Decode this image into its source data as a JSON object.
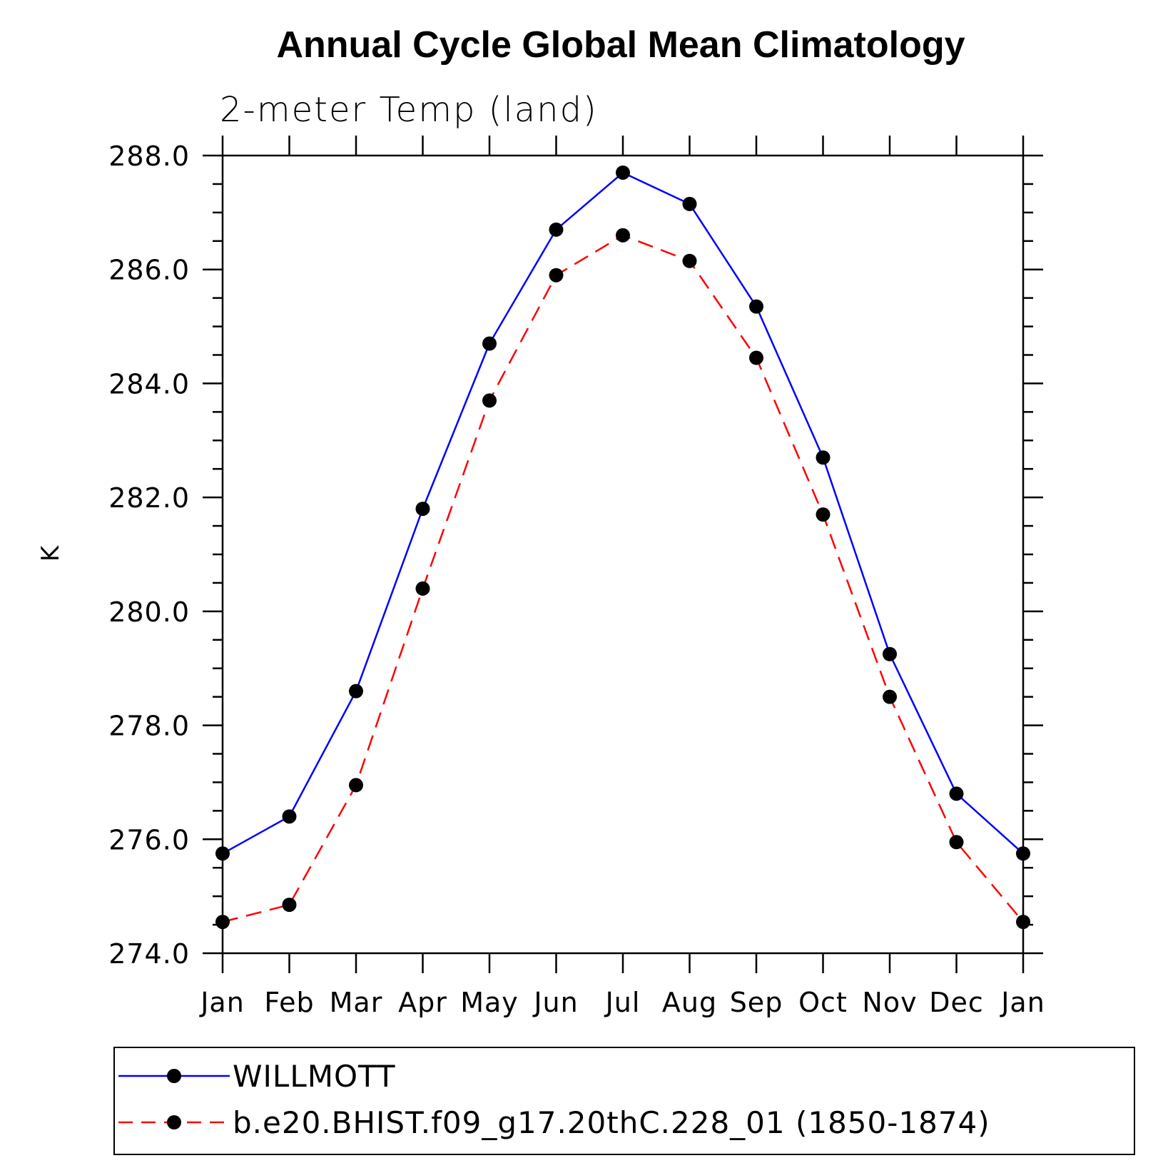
{
  "chart_data": {
    "type": "line",
    "title": "Annual Cycle Global Mean Climatology",
    "subtitle": "2-meter Temp (land)",
    "xlabel": "",
    "ylabel": "K",
    "categories": [
      "Jan",
      "Feb",
      "Mar",
      "Apr",
      "May",
      "Jun",
      "Jul",
      "Aug",
      "Sep",
      "Oct",
      "Nov",
      "Dec",
      "Jan"
    ],
    "ylim": [
      274.0,
      288.0
    ],
    "yticks": [
      "274.0",
      "276.0",
      "278.0",
      "280.0",
      "282.0",
      "284.0",
      "286.0",
      "288.0"
    ],
    "grid": false,
    "legend_position": "bottom",
    "series": [
      {
        "name": "WILLMOTT",
        "color": "#0000ff",
        "line_style": "solid",
        "marker": "filled-circle",
        "marker_color": "#000000",
        "values": [
          275.75,
          276.4,
          278.6,
          281.8,
          284.7,
          286.7,
          287.7,
          287.15,
          285.35,
          282.7,
          279.25,
          276.8,
          275.75
        ]
      },
      {
        "name": "b.e20.BHIST.f09_g17.20thC.228_01 (1850-1874)",
        "color": "#ff0000",
        "line_style": "dashed",
        "marker": "filled-circle",
        "marker_color": "#000000",
        "values": [
          274.55,
          274.85,
          276.95,
          280.4,
          283.7,
          285.9,
          286.6,
          286.15,
          284.45,
          281.7,
          278.5,
          275.95,
          274.55
        ]
      }
    ]
  }
}
